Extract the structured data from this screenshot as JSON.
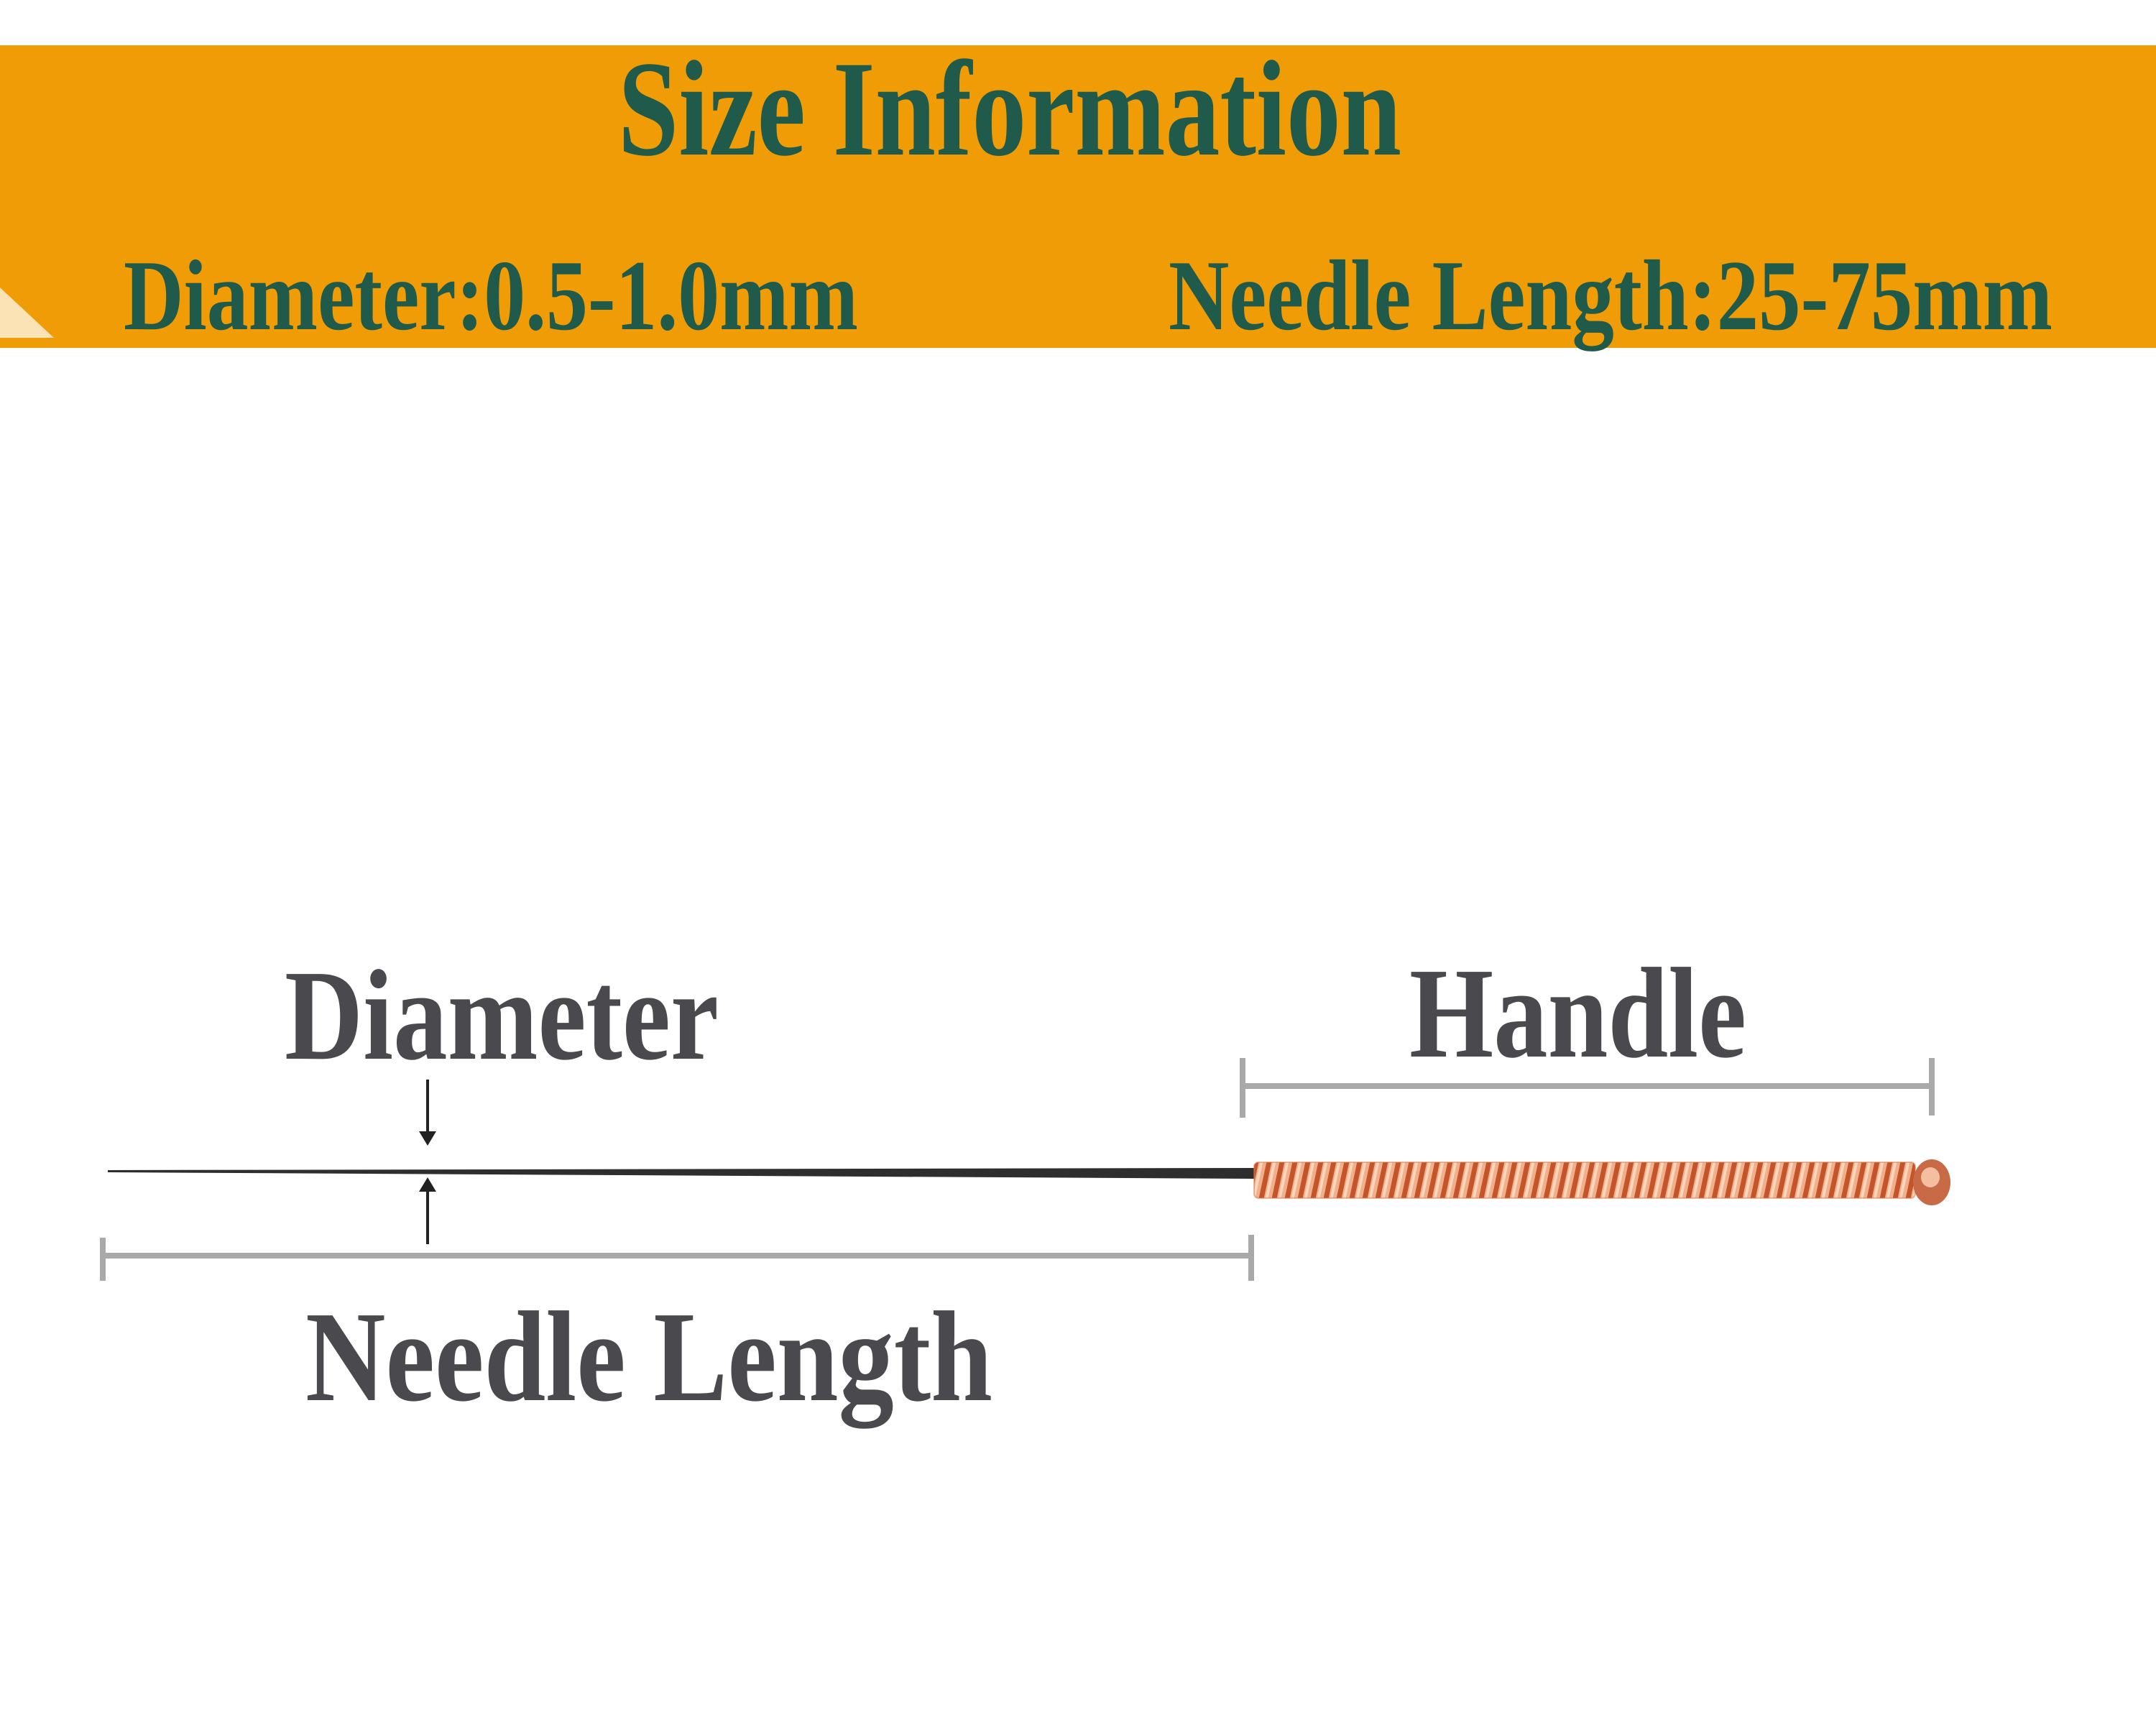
{
  "banner": {
    "title": "Size Information",
    "diameter_spec": "Diameter:0.5-1.0mm",
    "length_spec": "Needle Length:25-75mm",
    "background_color": "#ef9c06",
    "text_color": "#1f5a4a"
  },
  "diagram": {
    "diameter_label": "Diameter",
    "handle_label": "Handle",
    "needle_length_label": "Needle Length",
    "label_color": "#4a4a4e",
    "bracket_color": "#a9a9a9",
    "handle_color": "#d9774a"
  }
}
